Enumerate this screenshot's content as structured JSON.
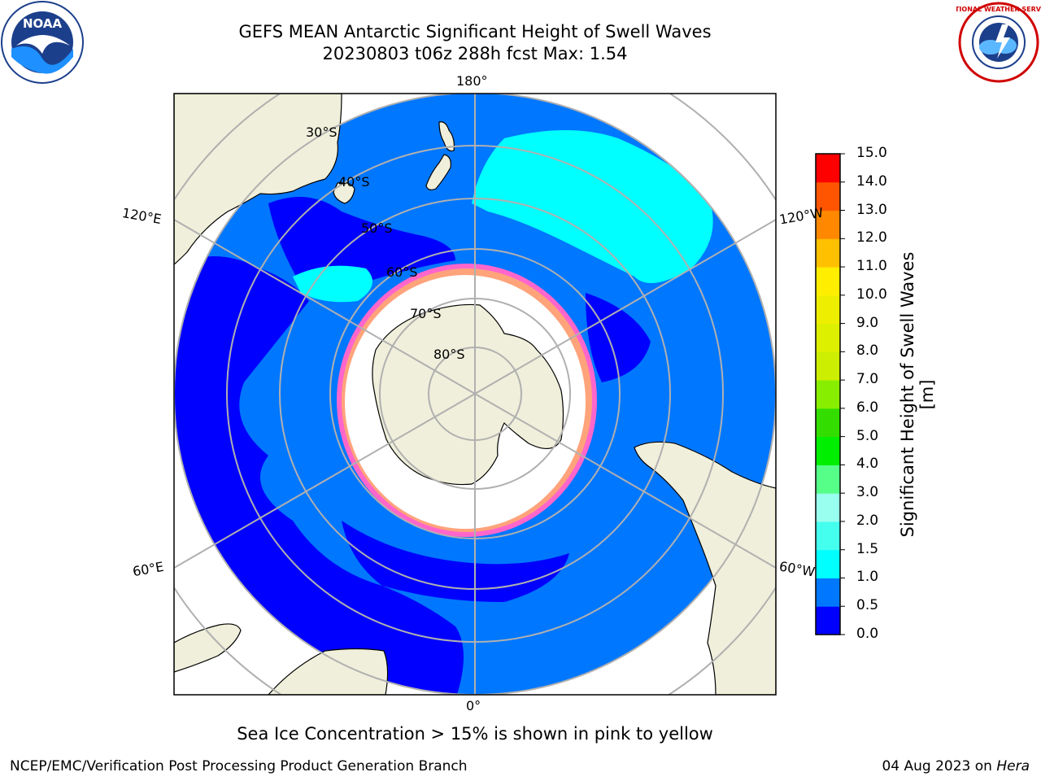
{
  "title": {
    "line1": "GEFS MEAN Antarctic Significant Height of Swell Waves",
    "line2": "20230803 t06z 288h fcst   Max: 1.54"
  },
  "logos": {
    "noaa_text": "NOAA",
    "nws_text": "NATIONAL WEATHER SERVICE"
  },
  "map": {
    "projection": "south-polar-stereographic",
    "longitude_labels": [
      "180°",
      "120°E",
      "120°W",
      "60°E",
      "60°W",
      "0°"
    ],
    "latitude_labels": [
      "30°S",
      "40°S",
      "50°S",
      "60°S",
      "70°S",
      "80°S"
    ],
    "colors": {
      "land": "#efefdb",
      "ocean_low": "#0000ff",
      "ocean_mid": "#0077ff",
      "ocean_high": "#00ffff",
      "ice": "#ffffff",
      "ice_edge": "#ff66cc",
      "graticule": "#b0b0b0"
    }
  },
  "colorbar": {
    "label": "Significant Height of Swell Waves [m]",
    "ticks": [
      "15.0",
      "14.0",
      "13.0",
      "12.0",
      "11.0",
      "10.0",
      "9.0",
      "8.0",
      "7.0",
      "6.0",
      "5.0",
      "4.0",
      "3.0",
      "2.0",
      "1.5",
      "1.0",
      "0.5",
      "0.0"
    ],
    "colors": [
      "#0000ff",
      "#0077ff",
      "#00ffff",
      "#44ffee",
      "#99ffee",
      "#55ff88",
      "#00ee00",
      "#33dd00",
      "#88ee00",
      "#ccee00",
      "#ddf000",
      "#eeee00",
      "#ffee00",
      "#ffc000",
      "#ff8800",
      "#ff5500",
      "#ff0000"
    ]
  },
  "footer": {
    "note": "Sea Ice Concentration > 15% is shown in pink to yellow",
    "left": "NCEP/EMC/Verification Post Processing Product Generation Branch",
    "right_date": "04 Aug 2023 on ",
    "right_host": "Hera"
  }
}
